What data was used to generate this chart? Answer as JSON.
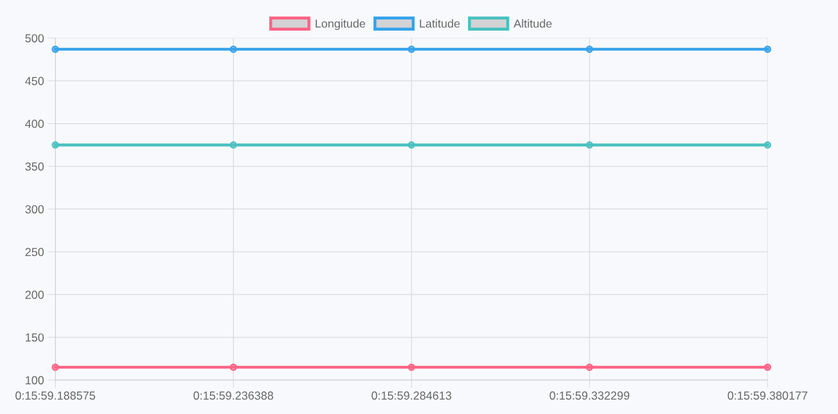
{
  "chart_data": {
    "type": "line",
    "categories": [
      "0:15:59.188575",
      "0:15:59.236388",
      "0:15:59.284613",
      "0:15:59.332299",
      "0:15:59.380177"
    ],
    "series": [
      {
        "name": "Longitude",
        "color": "#ff6384",
        "values": [
          115,
          115,
          115,
          115,
          115
        ]
      },
      {
        "name": "Latitude",
        "color": "#36a2eb",
        "values": [
          487,
          487,
          487,
          487,
          487
        ]
      },
      {
        "name": "Altitude",
        "color": "#4bc0c0",
        "values": [
          375,
          375,
          375,
          375,
          375
        ]
      }
    ],
    "ylim": [
      100,
      500
    ],
    "yticks": [
      100,
      150,
      200,
      250,
      300,
      350,
      400,
      450,
      500
    ],
    "grid": true,
    "legend": "top",
    "marker": "circle",
    "line_style": "solid"
  }
}
